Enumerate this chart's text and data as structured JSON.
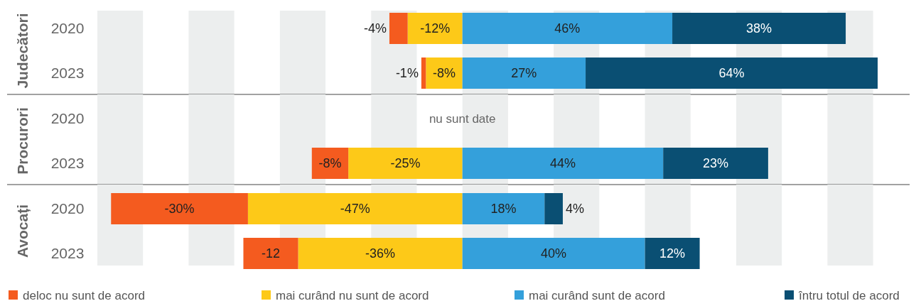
{
  "chart_data": [
    {
      "type": "bar",
      "orientation": "horizontal",
      "stacked": true,
      "ylabel": "Judecători",
      "categories": [
        "2020",
        "2023"
      ],
      "tick_labels": "y",
      "legend": false,
      "bands": [
        {
          "axis": "x",
          "from": -80,
          "to": -70,
          "color": "#eceeee"
        },
        {
          "axis": "x",
          "from": -60,
          "to": -50,
          "color": "#eceeee"
        },
        {
          "axis": "x",
          "from": -40,
          "to": -30,
          "color": "#eceeee"
        },
        {
          "axis": "x",
          "from": -20,
          "to": -10,
          "color": "#eceeee"
        },
        {
          "axis": "x",
          "from": 0,
          "to": 10,
          "color": "#eceeee"
        },
        {
          "axis": "x",
          "from": 20,
          "to": 30,
          "color": "#eceeee"
        },
        {
          "axis": "x",
          "from": 40,
          "to": 50,
          "color": "#eceeee"
        },
        {
          "axis": "x",
          "from": 60,
          "to": 70,
          "color": "#eceeee"
        },
        {
          "axis": "x",
          "from": 80,
          "to": 90,
          "color": "#eceeee"
        }
      ],
      "series": [
        {
          "color": "#fdc918",
          "values": [
            -12,
            -8
          ],
          "value_labels": [
            "-12%",
            "-8%"
          ]
        },
        {
          "color": "#f45b1f",
          "values": [
            -4,
            -1
          ],
          "value_labels": [
            "-4%",
            "-1%"
          ]
        },
        {
          "color": "#34a0db",
          "values": [
            46,
            27
          ],
          "value_labels": [
            "46%",
            "27%"
          ]
        },
        {
          "color": "#0a4f73",
          "values": [
            38,
            64
          ],
          "value_labels": [
            "38%",
            "64%"
          ]
        }
      ]
    },
    {
      "type": "bar",
      "orientation": "horizontal",
      "stacked": true,
      "ylabel": "Procurori",
      "categories": [
        "2020",
        "2023"
      ],
      "tick_labels": "y",
      "legend": false,
      "annotations": [
        {
          "text": "nu sunt date",
          "x": 0,
          "y": "2020"
        }
      ],
      "bands": [
        {
          "axis": "x",
          "from": -80,
          "to": -70,
          "color": "#eceeee"
        },
        {
          "axis": "x",
          "from": -60,
          "to": -50,
          "color": "#eceeee"
        },
        {
          "axis": "x",
          "from": -40,
          "to": -30,
          "color": "#eceeee"
        },
        {
          "axis": "x",
          "from": -20,
          "to": -10,
          "color": "#eceeee"
        },
        {
          "axis": "x",
          "from": 0,
          "to": 10,
          "color": "#eceeee"
        },
        {
          "axis": "x",
          "from": 20,
          "to": 30,
          "color": "#eceeee"
        },
        {
          "axis": "x",
          "from": 40,
          "to": 50,
          "color": "#eceeee"
        },
        {
          "axis": "x",
          "from": 60,
          "to": 70,
          "color": "#eceeee"
        },
        {
          "axis": "x",
          "from": 80,
          "to": 90,
          "color": "#eceeee"
        }
      ],
      "series": [
        {
          "color": "#fdc918",
          "values": [
            null,
            -25
          ],
          "value_labels": [
            null,
            "-25%"
          ]
        },
        {
          "color": "#f45b1f",
          "values": [
            null,
            -8
          ],
          "value_labels": [
            null,
            "-8%"
          ]
        },
        {
          "color": "#34a0db",
          "values": [
            null,
            44
          ],
          "value_labels": [
            null,
            "44%"
          ]
        },
        {
          "color": "#0a4f73",
          "values": [
            null,
            23
          ],
          "value_labels": [
            null,
            "23%"
          ]
        }
      ]
    },
    {
      "type": "bar",
      "orientation": "horizontal",
      "stacked": true,
      "ylabel": "Avocați",
      "categories": [
        "2020",
        "2023"
      ],
      "tick_labels": "y",
      "legend": "bottom",
      "bands": [
        {
          "axis": "x",
          "from": -80,
          "to": -70,
          "color": "#eceeee"
        },
        {
          "axis": "x",
          "from": -60,
          "to": -50,
          "color": "#eceeee"
        },
        {
          "axis": "x",
          "from": -40,
          "to": -30,
          "color": "#eceeee"
        },
        {
          "axis": "x",
          "from": -20,
          "to": -10,
          "color": "#eceeee"
        },
        {
          "axis": "x",
          "from": 0,
          "to": 10,
          "color": "#eceeee"
        },
        {
          "axis": "x",
          "from": 20,
          "to": 30,
          "color": "#eceeee"
        },
        {
          "axis": "x",
          "from": 40,
          "to": 50,
          "color": "#eceeee"
        },
        {
          "axis": "x",
          "from": 60,
          "to": 70,
          "color": "#eceeee"
        },
        {
          "axis": "x",
          "from": 80,
          "to": 90,
          "color": "#eceeee"
        }
      ],
      "series": [
        {
          "name": "mai curând nu sunt de acord",
          "color": "#fdc918",
          "values": [
            -47,
            -36
          ],
          "value_labels": [
            "-47%",
            "-36%"
          ]
        },
        {
          "name": "deloc nu sunt de acord",
          "color": "#f45b1f",
          "values": [
            -30,
            -12
          ],
          "value_labels": [
            "-30%",
            "-12"
          ]
        },
        {
          "name": "mai curând sunt de acord",
          "color": "#34a0db",
          "values": [
            18,
            40
          ],
          "value_labels": [
            "18%",
            "40%"
          ]
        },
        {
          "name": "întru totul de acord",
          "color": "#0a4f73",
          "values": [
            4,
            12
          ],
          "value_labels": [
            "4%",
            "12%"
          ]
        }
      ]
    }
  ]
}
